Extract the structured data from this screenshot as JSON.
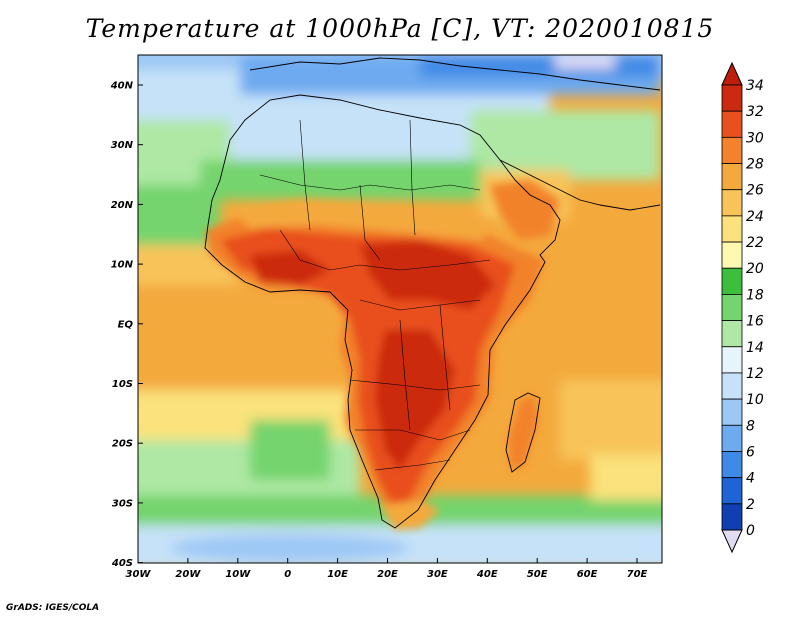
{
  "title": "Temperature at 1000hPa [C], VT: 2020010815",
  "credit": "GrADS: IGES/COLA",
  "map": {
    "lat_labels": [
      "40N",
      "30N",
      "20N",
      "10N",
      "EQ",
      "10S",
      "20S",
      "30S",
      "40S"
    ],
    "lon_labels": [
      "30W",
      "20W",
      "10W",
      "0",
      "10E",
      "20E",
      "30E",
      "40E",
      "50E",
      "60E",
      "70E"
    ],
    "lon_range": [
      -30,
      75
    ],
    "lat_range": [
      -40,
      45
    ]
  },
  "colorbar": {
    "labels": [
      "0",
      "2",
      "4",
      "6",
      "8",
      "10",
      "12",
      "14",
      "16",
      "18",
      "20",
      "22",
      "24",
      "26",
      "28",
      "30",
      "32",
      "34"
    ],
    "colors": [
      "#1a1a8c",
      "#0f3fb0",
      "#1f63d6",
      "#3f8ae6",
      "#6eaaf0",
      "#9dc8f5",
      "#c6e2f8",
      "#e6f5fb",
      "#aee8a4",
      "#74d46d",
      "#3cbf3c",
      "#fff8b0",
      "#fbe27c",
      "#f8c45a",
      "#f4a93c",
      "#f2822c",
      "#e8501e",
      "#cc2a10"
    ],
    "under_color": "#e0dcf4",
    "over_color": "#c01e0c"
  }
}
